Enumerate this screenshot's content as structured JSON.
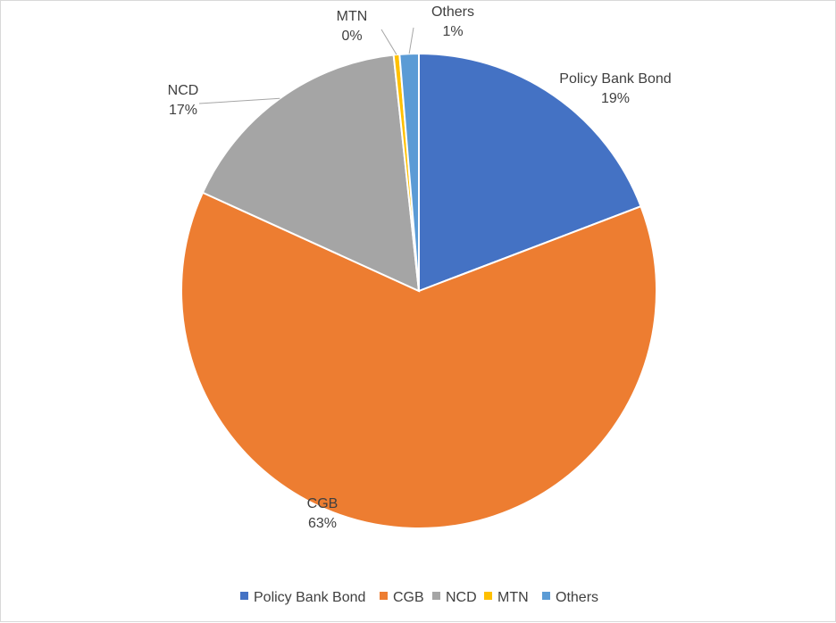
{
  "chart_data": {
    "type": "pie",
    "title": "",
    "legend_position": "bottom",
    "categories": [
      "Policy Bank Bond",
      "CGB",
      "NCD",
      "MTN",
      "Others"
    ],
    "values": [
      19.2,
      62.6,
      16.5,
      0.4,
      1.3
    ],
    "data_labels": [
      "19%",
      "63%",
      "17%",
      "0%",
      "1%"
    ],
    "colors": [
      "#4472C4",
      "#ED7D31",
      "#A5A5A5",
      "#FFC000",
      "#5B9BD5"
    ]
  }
}
